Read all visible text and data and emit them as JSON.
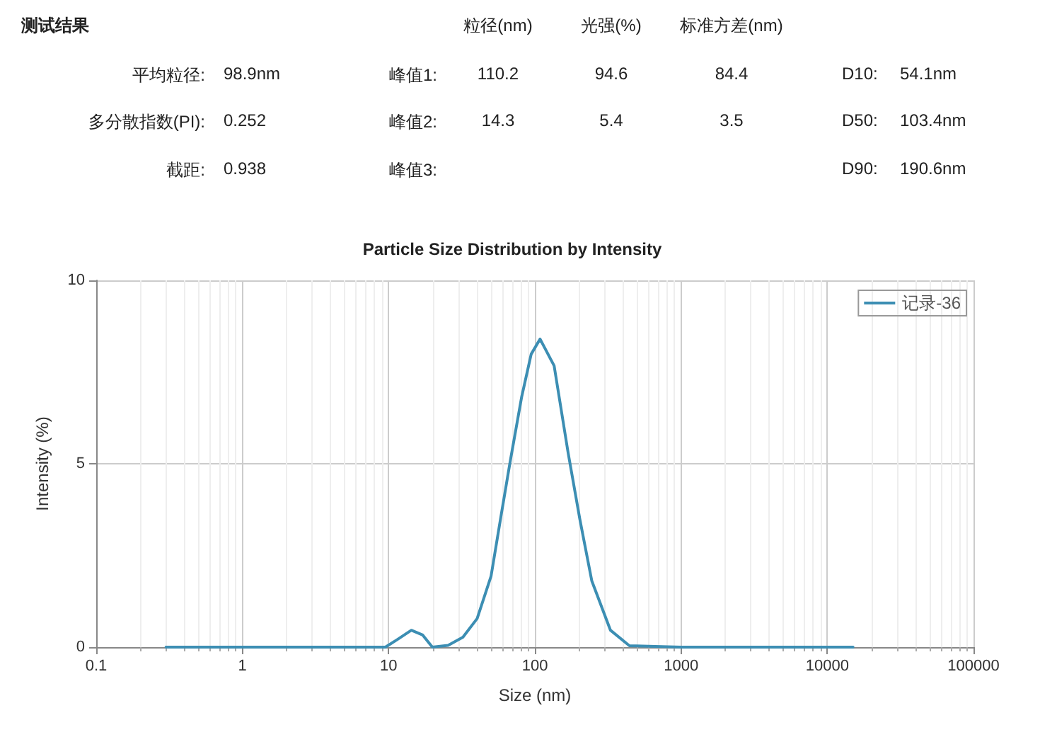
{
  "chart_data": [
    {
      "type": "other",
      "annotations": [
        "测试结果",
        "粒径(nm)",
        "光强(%)",
        "标准方差(nm)",
        "平均粒径:",
        "98.9nm",
        "峰值1:",
        "110.2",
        "94.6",
        "84.4",
        "D10:",
        "54.1nm",
        "多分散指数(PI):",
        "0.252",
        "峰值2:",
        "14.3",
        "5.4",
        "3.5",
        "D50:",
        "103.4nm",
        "截距:",
        "0.938",
        "峰值3:",
        "D90:",
        "190.6nm"
      ]
    },
    {
      "type": "line",
      "title": "Particle Size Distribution by Intensity",
      "xlabel": "Size (nm)",
      "ylabel": "Intensity (%)",
      "log": "x",
      "xlim": [
        0.1,
        100000
      ],
      "xticks": [
        0.1,
        1,
        10,
        100,
        1000,
        10000,
        100000
      ],
      "ylim": [
        0,
        10
      ],
      "yticks": [
        0,
        5,
        10
      ],
      "grid": true,
      "legend": "top right",
      "marker": "none",
      "line_style": "solid",
      "series": [
        {
          "name": "记录-36",
          "color": "#3c8eb3",
          "x": [
            0.3,
            1,
            5,
            9.5,
            11.4,
            14.3,
            17.1,
            19.9,
            25.5,
            32.2,
            40.3,
            50.2,
            58.2,
            67.6,
            81.3,
            94.4,
            108.6,
            135.5,
            169,
            203,
            245,
            329,
            443,
            1000,
            5000,
            15000
          ],
          "values": [
            0,
            0,
            0,
            0,
            0.2,
            0.46,
            0.33,
            0,
            0.05,
            0.27,
            0.78,
            1.94,
            3.49,
            5.03,
            6.83,
            7.99,
            8.4,
            7.67,
            5.29,
            3.49,
            1.81,
            0.46,
            0.04,
            0,
            0,
            0
          ]
        }
      ]
    }
  ]
}
